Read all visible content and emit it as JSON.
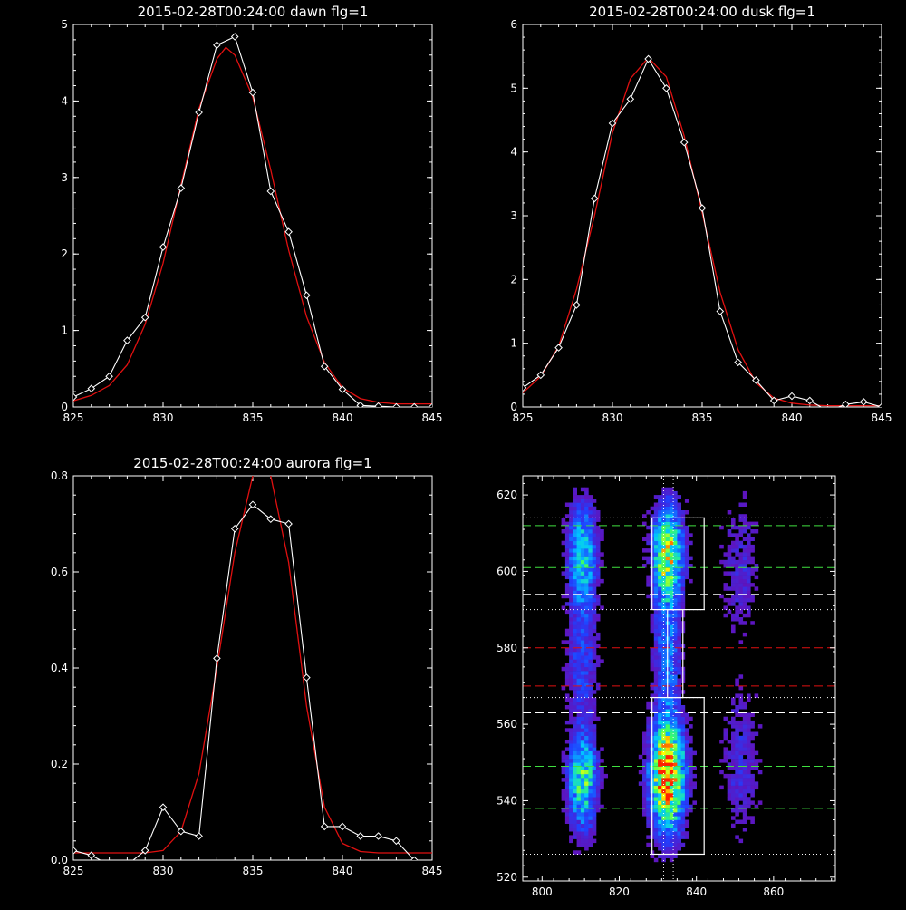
{
  "chart_data": [
    {
      "type": "line",
      "title": "2015-02-28T00:24:00 dawn flg=1",
      "xlim": [
        825,
        845
      ],
      "ylim": [
        0,
        5
      ],
      "xticks": [
        825,
        830,
        835,
        840,
        845
      ],
      "yticks": [
        0,
        1,
        2,
        3,
        4,
        5
      ],
      "series": [
        {
          "role": "measured",
          "color": "#ffffff",
          "marker": "diamond",
          "x": [
            825,
            826,
            827,
            828,
            829,
            830,
            831,
            832,
            833,
            834,
            835,
            836,
            837,
            838,
            839,
            840,
            841,
            842,
            843,
            844,
            845
          ],
          "y": [
            0.13,
            0.24,
            0.4,
            0.87,
            1.17,
            2.09,
            2.86,
            3.85,
            4.73,
            4.84,
            4.11,
            2.82,
            2.29,
            1.46,
            0.53,
            0.23,
            0.02,
            0.01,
            0.0,
            0.0,
            0.0
          ]
        },
        {
          "role": "fit",
          "color": "#e01010",
          "x": [
            825,
            826,
            827,
            828,
            829,
            830,
            831,
            832,
            833,
            833.5,
            834,
            835,
            836,
            837,
            838,
            839,
            840,
            841,
            842,
            843,
            844,
            845
          ],
          "y": [
            0.08,
            0.15,
            0.28,
            0.55,
            1.08,
            1.88,
            2.9,
            3.9,
            4.55,
            4.7,
            4.6,
            4.05,
            3.1,
            2.05,
            1.18,
            0.58,
            0.25,
            0.11,
            0.06,
            0.04,
            0.04,
            0.04
          ]
        }
      ]
    },
    {
      "type": "line",
      "title": "2015-02-28T00:24:00 dusk flg=1",
      "xlim": [
        825,
        845
      ],
      "ylim": [
        0,
        6
      ],
      "xticks": [
        825,
        830,
        835,
        840,
        845
      ],
      "yticks": [
        0,
        1,
        2,
        3,
        4,
        5,
        6
      ],
      "series": [
        {
          "role": "measured",
          "color": "#ffffff",
          "marker": "diamond",
          "x": [
            825,
            826,
            827,
            828,
            829,
            830,
            831,
            832,
            833,
            834,
            835,
            836,
            837,
            838,
            839,
            840,
            841,
            842,
            843,
            844,
            845
          ],
          "y": [
            0.3,
            0.5,
            0.93,
            1.6,
            3.27,
            4.45,
            4.83,
            5.46,
            5.0,
            4.15,
            3.12,
            1.5,
            0.7,
            0.42,
            0.1,
            0.17,
            0.1,
            -0.06,
            0.04,
            0.08,
            0.0
          ]
        },
        {
          "role": "fit",
          "color": "#e01010",
          "x": [
            825,
            826,
            827,
            828,
            829,
            830,
            831,
            832,
            833,
            834,
            835,
            836,
            837,
            838,
            839,
            840,
            841,
            842,
            843,
            844,
            845
          ],
          "y": [
            0.22,
            0.48,
            0.95,
            1.85,
            3.0,
            4.3,
            5.15,
            5.48,
            5.18,
            4.25,
            3.05,
            1.8,
            0.9,
            0.38,
            0.14,
            0.06,
            0.03,
            0.02,
            0.02,
            0.02,
            0.02
          ]
        }
      ]
    },
    {
      "type": "line",
      "title": "2015-02-28T00:24:00 aurora flg=1",
      "xlim": [
        825,
        845
      ],
      "ylim": [
        0,
        0.8
      ],
      "xticks": [
        825,
        830,
        835,
        840,
        845
      ],
      "yticks": [
        0.0,
        0.2,
        0.4,
        0.6,
        0.8
      ],
      "ytick_labels": [
        "0.0",
        "0.2",
        "0.4",
        "0.6",
        "0.8"
      ],
      "series": [
        {
          "role": "measured",
          "color": "#ffffff",
          "marker": "diamond",
          "x": [
            825,
            826,
            827,
            828,
            829,
            830,
            831,
            832,
            833,
            834,
            835,
            836,
            837,
            838,
            839,
            840,
            841,
            842,
            843,
            844,
            845
          ],
          "y": [
            0.02,
            0.01,
            -0.01,
            -0.01,
            0.02,
            0.11,
            0.06,
            0.05,
            0.42,
            0.69,
            0.74,
            0.71,
            0.7,
            0.38,
            0.07,
            0.07,
            0.05,
            0.05,
            0.04,
            0.0,
            -0.01
          ]
        },
        {
          "role": "fit",
          "color": "#e01010",
          "x": [
            825,
            826,
            827,
            828,
            829,
            830,
            831,
            832,
            833,
            834,
            835,
            835.5,
            836,
            837,
            838,
            839,
            840,
            841,
            842,
            843,
            844,
            845
          ],
          "y": [
            0.015,
            0.015,
            0.015,
            0.015,
            0.015,
            0.02,
            0.06,
            0.18,
            0.4,
            0.64,
            0.8,
            0.82,
            0.8,
            0.62,
            0.32,
            0.11,
            0.035,
            0.018,
            0.015,
            0.015,
            0.015,
            0.015
          ]
        }
      ]
    },
    {
      "type": "heatmap",
      "xlim": [
        795,
        876
      ],
      "ylim": [
        519,
        625
      ],
      "xticks": [
        800,
        820,
        840,
        860
      ],
      "yticks": [
        520,
        540,
        560,
        580,
        600,
        620
      ],
      "colormap": [
        "#7a00a0",
        "#2040ff",
        "#00c8ff",
        "#40ff60",
        "#ffff00",
        "#ff2000"
      ],
      "clusters": [
        {
          "x": 810,
          "y": 545,
          "sx": 2.3,
          "sy": 8,
          "peak": 0.55
        },
        {
          "x": 810,
          "y": 603,
          "sx": 2.3,
          "sy": 9,
          "peak": 0.45
        },
        {
          "x": 810,
          "y": 575,
          "sx": 2.5,
          "sy": 10,
          "peak": 0.18
        },
        {
          "x": 832,
          "y": 546,
          "sx": 2.8,
          "sy": 9,
          "peak": 1.0
        },
        {
          "x": 832,
          "y": 604,
          "sx": 2.5,
          "sy": 8,
          "peak": 0.7
        },
        {
          "x": 832,
          "y": 578,
          "sx": 2.3,
          "sy": 12,
          "peak": 0.25
        },
        {
          "x": 851,
          "y": 550,
          "sx": 3,
          "sy": 12,
          "peak": 0.12
        },
        {
          "x": 851,
          "y": 600,
          "sx": 3,
          "sy": 12,
          "peak": 0.1
        }
      ],
      "boxes": [
        {
          "color": "#ffffff",
          "x0": 828.5,
          "x1": 842,
          "y0": 590,
          "y1": 614
        },
        {
          "color": "#ffffff",
          "x0": 828.5,
          "x1": 842,
          "y0": 526,
          "y1": 567
        },
        {
          "color": "#ffffff",
          "x0": 832.5,
          "x1": 836.5,
          "y0": 567,
          "y1": 590
        }
      ],
      "hlines": [
        {
          "y": 612,
          "style": "dashed",
          "color": "#40e040"
        },
        {
          "y": 601,
          "style": "dashed",
          "color": "#40e040"
        },
        {
          "y": 549,
          "style": "dashed",
          "color": "#40e040"
        },
        {
          "y": 538,
          "style": "dashed",
          "color": "#40e040"
        },
        {
          "y": 594,
          "style": "dashed",
          "color": "#ffffff"
        },
        {
          "y": 563,
          "style": "dashed",
          "color": "#ffffff"
        },
        {
          "y": 580,
          "style": "dashed",
          "color": "#e01010"
        },
        {
          "y": 570,
          "style": "dashed",
          "color": "#e01010"
        },
        {
          "y": 614,
          "style": "dotted",
          "color": "#ffffff"
        },
        {
          "y": 590,
          "style": "dotted",
          "color": "#ffffff"
        },
        {
          "y": 567,
          "style": "dotted",
          "color": "#ffffff"
        },
        {
          "y": 526,
          "style": "dotted",
          "color": "#ffffff"
        }
      ],
      "vlines": [
        {
          "x": 831.5,
          "style": "dotted",
          "color": "#ffffff"
        },
        {
          "x": 834,
          "style": "dotted",
          "color": "#ffffff"
        }
      ]
    }
  ]
}
